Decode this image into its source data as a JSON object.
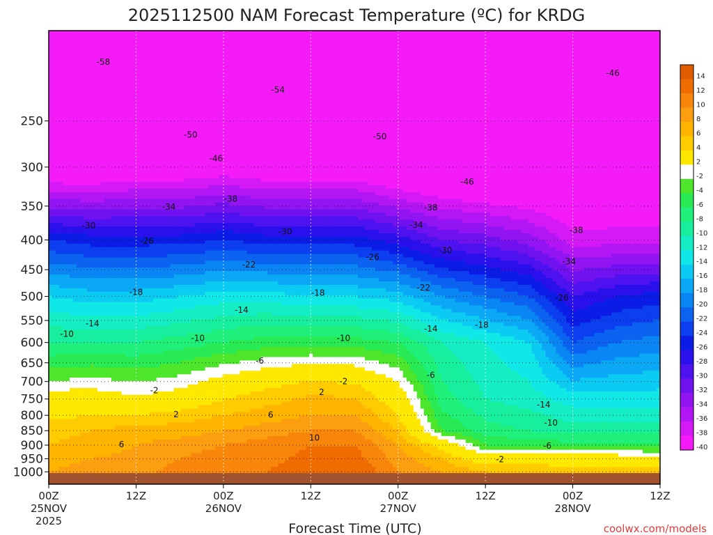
{
  "chart_data": {
    "type": "heatmap",
    "title": "2025112500 NAM Forecast Temperature (ºC) for KRDG",
    "xlabel": "Forecast Time (UTC)",
    "ylabel": "",
    "credit": "coolwx.com/models",
    "x_range_hours": [
      0,
      84
    ],
    "y_range_hPa": [
      1050,
      175
    ],
    "y_scale": "log",
    "yticks": [
      250,
      300,
      350,
      400,
      450,
      500,
      550,
      600,
      650,
      700,
      750,
      800,
      850,
      900,
      950,
      1000
    ],
    "xticks": [
      {
        "hour": 0,
        "label": "00Z",
        "date": "25NOV",
        "year": "2025"
      },
      {
        "hour": 12,
        "label": "12Z",
        "date": "",
        "year": ""
      },
      {
        "hour": 24,
        "label": "00Z",
        "date": "26NOV",
        "year": ""
      },
      {
        "hour": 36,
        "label": "12Z",
        "date": "",
        "year": ""
      },
      {
        "hour": 48,
        "label": "00Z",
        "date": "27NOV",
        "year": ""
      },
      {
        "hour": 60,
        "label": "12Z",
        "date": "",
        "year": ""
      },
      {
        "hour": 72,
        "label": "00Z",
        "date": "28NOV",
        "year": ""
      },
      {
        "hour": 84,
        "label": "12Z",
        "date": "",
        "year": ""
      }
    ],
    "grid": true,
    "ground_pressure_hPa": 1005,
    "colorbar": {
      "placement": "right",
      "labels": [
        "14",
        "12",
        "10",
        "8",
        "6",
        "4",
        "2",
        "-2",
        "-4",
        "-6",
        "-8",
        "-10",
        "-12",
        "-14",
        "-16",
        "-18",
        "-20",
        "-22",
        "-24",
        "-26",
        "-28",
        "-30",
        "-32",
        "-34",
        "-36",
        "-38",
        "-40"
      ],
      "colors": [
        "#e05a00",
        "#ef6c00",
        "#f7860b",
        "#fb9e10",
        "#ffb400",
        "#ffcc00",
        "#ffe800",
        "#ffffff",
        "#4de62a",
        "#28ea55",
        "#1ef07b",
        "#17ef9e",
        "#15eec4",
        "#10e8e8",
        "#0ccbf2",
        "#0aa8f5",
        "#0a86f4",
        "#0b63f0",
        "#0c3ff0",
        "#0b1ce6",
        "#2a10ec",
        "#4d12ef",
        "#7012f0",
        "#9214f2",
        "#b316f4",
        "#d418f6",
        "#f51af8"
      ]
    },
    "columns_hours": [
      0,
      6,
      12,
      18,
      24,
      30,
      36,
      42,
      48,
      54,
      60,
      66,
      72,
      78,
      84
    ],
    "columns": [
      {
        "hour": 0,
        "profile": [
          [
            1000,
            6
          ],
          [
            900,
            4
          ],
          [
            850,
            3
          ],
          [
            750,
            0
          ],
          [
            700,
            -4
          ],
          [
            600,
            -10
          ],
          [
            500,
            -16
          ],
          [
            400,
            -26
          ],
          [
            300,
            -44
          ],
          [
            250,
            -50
          ],
          [
            200,
            -58
          ]
        ]
      },
      {
        "hour": 6,
        "profile": [
          [
            1000,
            7
          ],
          [
            900,
            5
          ],
          [
            850,
            4
          ],
          [
            780,
            1
          ],
          [
            720,
            -2
          ],
          [
            600,
            -10
          ],
          [
            500,
            -17
          ],
          [
            400,
            -27
          ],
          [
            300,
            -44
          ],
          [
            250,
            -51
          ],
          [
            200,
            -58
          ]
        ]
      },
      {
        "hour": 12,
        "profile": [
          [
            1000,
            7
          ],
          [
            900,
            6
          ],
          [
            850,
            5
          ],
          [
            800,
            2
          ],
          [
            740,
            -2
          ],
          [
            600,
            -10
          ],
          [
            500,
            -17
          ],
          [
            400,
            -27
          ],
          [
            300,
            -43
          ],
          [
            250,
            -51
          ],
          [
            200,
            -57
          ]
        ]
      },
      {
        "hour": 18,
        "profile": [
          [
            1000,
            9
          ],
          [
            900,
            7
          ],
          [
            850,
            5
          ],
          [
            800,
            3
          ],
          [
            740,
            -1
          ],
          [
            600,
            -9
          ],
          [
            500,
            -16
          ],
          [
            400,
            -27
          ],
          [
            300,
            -43
          ],
          [
            250,
            -51
          ],
          [
            200,
            -57
          ]
        ]
      },
      {
        "hour": 24,
        "profile": [
          [
            1000,
            10
          ],
          [
            900,
            8
          ],
          [
            850,
            6
          ],
          [
            800,
            4
          ],
          [
            730,
            1
          ],
          [
            600,
            -8
          ],
          [
            500,
            -15
          ],
          [
            400,
            -26
          ],
          [
            300,
            -42
          ],
          [
            250,
            -52
          ],
          [
            200,
            -56
          ]
        ]
      },
      {
        "hour": 30,
        "profile": [
          [
            1000,
            10
          ],
          [
            900,
            9
          ],
          [
            850,
            7
          ],
          [
            800,
            5
          ],
          [
            720,
            2
          ],
          [
            600,
            -7
          ],
          [
            500,
            -15
          ],
          [
            400,
            -27
          ],
          [
            300,
            -43
          ],
          [
            250,
            -52
          ],
          [
            200,
            -57
          ]
        ]
      },
      {
        "hour": 36,
        "profile": [
          [
            1000,
            11
          ],
          [
            900,
            10
          ],
          [
            850,
            8
          ],
          [
            800,
            6
          ],
          [
            710,
            3
          ],
          [
            600,
            -7
          ],
          [
            500,
            -16
          ],
          [
            400,
            -27
          ],
          [
            300,
            -43
          ],
          [
            250,
            -51
          ],
          [
            200,
            -57
          ]
        ]
      },
      {
        "hour": 42,
        "profile": [
          [
            1000,
            12
          ],
          [
            900,
            10
          ],
          [
            850,
            8
          ],
          [
            800,
            6
          ],
          [
            720,
            3
          ],
          [
            600,
            -7
          ],
          [
            500,
            -16
          ],
          [
            400,
            -27
          ],
          [
            300,
            -43
          ],
          [
            250,
            -50
          ],
          [
            200,
            -57
          ]
        ]
      },
      {
        "hour": 48,
        "profile": [
          [
            1000,
            8
          ],
          [
            900,
            6
          ],
          [
            850,
            4
          ],
          [
            800,
            2
          ],
          [
            740,
            0
          ],
          [
            600,
            -8
          ],
          [
            500,
            -17
          ],
          [
            400,
            -29
          ],
          [
            300,
            -45
          ],
          [
            250,
            -50
          ],
          [
            200,
            -56
          ]
        ]
      },
      {
        "hour": 54,
        "profile": [
          [
            1000,
            6
          ],
          [
            950,
            4
          ],
          [
            900,
            1
          ],
          [
            850,
            -6
          ],
          [
            750,
            -9
          ],
          [
            600,
            -12
          ],
          [
            500,
            -20
          ],
          [
            400,
            -32
          ],
          [
            300,
            -46
          ],
          [
            250,
            -52
          ],
          [
            200,
            -57
          ]
        ]
      },
      {
        "hour": 60,
        "profile": [
          [
            1000,
            4
          ],
          [
            950,
            0
          ],
          [
            900,
            -6
          ],
          [
            850,
            -9
          ],
          [
            750,
            -12
          ],
          [
            600,
            -14
          ],
          [
            500,
            -22
          ],
          [
            400,
            -33
          ],
          [
            300,
            -47
          ],
          [
            250,
            -53
          ],
          [
            200,
            -56
          ]
        ]
      },
      {
        "hour": 66,
        "profile": [
          [
            1000,
            4
          ],
          [
            950,
            1
          ],
          [
            900,
            -7
          ],
          [
            850,
            -10
          ],
          [
            750,
            -13
          ],
          [
            600,
            -16
          ],
          [
            500,
            -24
          ],
          [
            400,
            -35
          ],
          [
            300,
            -47
          ],
          [
            250,
            -52
          ],
          [
            200,
            -56
          ]
        ]
      },
      {
        "hour": 72,
        "profile": [
          [
            1000,
            3
          ],
          [
            950,
            0
          ],
          [
            900,
            -7
          ],
          [
            850,
            -11
          ],
          [
            750,
            -15
          ],
          [
            600,
            -24
          ],
          [
            500,
            -30
          ],
          [
            400,
            -39
          ],
          [
            300,
            -46
          ],
          [
            250,
            -50
          ],
          [
            200,
            -52
          ]
        ]
      },
      {
        "hour": 78,
        "profile": [
          [
            1000,
            3
          ],
          [
            950,
            0
          ],
          [
            900,
            -7
          ],
          [
            850,
            -11
          ],
          [
            750,
            -15
          ],
          [
            600,
            -22
          ],
          [
            500,
            -28
          ],
          [
            400,
            -39
          ],
          [
            300,
            -45
          ],
          [
            250,
            -48
          ],
          [
            200,
            -50
          ]
        ]
      },
      {
        "hour": 84,
        "profile": [
          [
            1000,
            3
          ],
          [
            950,
            -1
          ],
          [
            900,
            -7
          ],
          [
            850,
            -11
          ],
          [
            750,
            -15
          ],
          [
            600,
            -21
          ],
          [
            500,
            -27
          ],
          [
            400,
            -39
          ],
          [
            300,
            -44
          ],
          [
            250,
            -47
          ],
          [
            200,
            -49
          ]
        ]
      }
    ],
    "contour_labels": [
      {
        "text": "-58",
        "hour": 7.5,
        "p": 198
      },
      {
        "text": "-54",
        "hour": 31.5,
        "p": 221
      },
      {
        "text": "-50",
        "hour": 19.5,
        "p": 264
      },
      {
        "text": "-50",
        "hour": 45.5,
        "p": 266
      },
      {
        "text": "-46",
        "hour": 23,
        "p": 290
      },
      {
        "text": "-46",
        "hour": 57.5,
        "p": 318
      },
      {
        "text": "-46",
        "hour": 77.5,
        "p": 207
      },
      {
        "text": "-38",
        "hour": 25,
        "p": 340
      },
      {
        "text": "-38",
        "hour": 52.5,
        "p": 352
      },
      {
        "text": "-38",
        "hour": 72.5,
        "p": 385
      },
      {
        "text": "-34",
        "hour": 16.5,
        "p": 351
      },
      {
        "text": "-34",
        "hour": 50.5,
        "p": 377
      },
      {
        "text": "-34",
        "hour": 71.5,
        "p": 436
      },
      {
        "text": "-30",
        "hour": 5.5,
        "p": 378
      },
      {
        "text": "-30",
        "hour": 32.5,
        "p": 387
      },
      {
        "text": "-30",
        "hour": 54.5,
        "p": 417
      },
      {
        "text": "-26",
        "hour": 13.5,
        "p": 402
      },
      {
        "text": "-26",
        "hour": 44.5,
        "p": 428
      },
      {
        "text": "-26",
        "hour": 70.5,
        "p": 503
      },
      {
        "text": "-22",
        "hour": 27.5,
        "p": 441
      },
      {
        "text": "-22",
        "hour": 51.5,
        "p": 483
      },
      {
        "text": "-18",
        "hour": 12,
        "p": 492
      },
      {
        "text": "-18",
        "hour": 37,
        "p": 493
      },
      {
        "text": "-18",
        "hour": 59.5,
        "p": 560
      },
      {
        "text": "-14",
        "hour": 6,
        "p": 557
      },
      {
        "text": "-14",
        "hour": 26.5,
        "p": 528
      },
      {
        "text": "-14",
        "hour": 52.5,
        "p": 568
      },
      {
        "text": "-14",
        "hour": 68,
        "p": 767
      },
      {
        "text": "-10",
        "hour": 2.5,
        "p": 580
      },
      {
        "text": "-10",
        "hour": 20.5,
        "p": 590
      },
      {
        "text": "-10",
        "hour": 40.5,
        "p": 590
      },
      {
        "text": "-10",
        "hour": 69,
        "p": 824
      },
      {
        "text": "-6",
        "hour": 29,
        "p": 645
      },
      {
        "text": "-6",
        "hour": 52.5,
        "p": 683
      },
      {
        "text": "-6",
        "hour": 68.5,
        "p": 902
      },
      {
        "text": "-2",
        "hour": 14.5,
        "p": 725
      },
      {
        "text": "-2",
        "hour": 40.5,
        "p": 700
      },
      {
        "text": "-2",
        "hour": 62,
        "p": 952
      },
      {
        "text": "2",
        "hour": 17.5,
        "p": 797
      },
      {
        "text": "2",
        "hour": 37.5,
        "p": 730
      },
      {
        "text": "6",
        "hour": 10,
        "p": 897
      },
      {
        "text": "6",
        "hour": 30.5,
        "p": 798
      },
      {
        "text": "10",
        "hour": 36.5,
        "p": 874
      }
    ]
  }
}
